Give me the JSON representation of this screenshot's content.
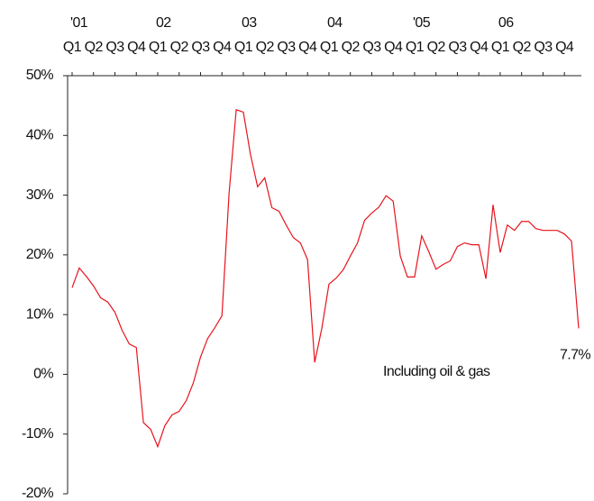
{
  "chart_data": {
    "type": "line",
    "categories": [
      "Q1",
      null,
      null,
      "Q2",
      null,
      null,
      "Q3",
      null,
      null,
      "Q4",
      null,
      null,
      "Q1",
      null,
      null,
      "Q2",
      null,
      null,
      "Q3",
      null,
      null,
      "Q4",
      null,
      null,
      "Q1",
      null,
      null,
      "Q2",
      null,
      null,
      "Q3",
      null,
      null,
      "Q4",
      null,
      null,
      "Q1",
      null,
      null,
      "Q2",
      null,
      null,
      "Q3",
      null,
      null,
      "Q4",
      null,
      null,
      "Q1",
      null,
      null,
      "Q2",
      null,
      null,
      "Q3",
      null,
      null,
      "Q4",
      null,
      null,
      "Q1",
      null,
      null,
      "Q2",
      null,
      null,
      "Q3",
      null,
      null,
      "Q4",
      null,
      null
    ],
    "years": [
      "'01",
      null,
      null,
      null,
      null,
      null,
      null,
      null,
      null,
      null,
      null,
      null,
      "02",
      null,
      null,
      null,
      null,
      null,
      null,
      null,
      null,
      null,
      null,
      null,
      "03",
      null,
      null,
      null,
      null,
      null,
      null,
      null,
      null,
      null,
      null,
      null,
      "04",
      null,
      null,
      null,
      null,
      null,
      null,
      null,
      null,
      null,
      null,
      null,
      "'05",
      null,
      null,
      null,
      null,
      null,
      null,
      null,
      null,
      null,
      null,
      null,
      "06",
      null,
      null,
      null,
      null,
      null,
      null,
      null,
      null,
      null,
      null,
      null
    ],
    "series": [
      {
        "name": "Including oil & gas",
        "color": "#e8141e",
        "values": [
          14.5,
          17.8,
          16.4,
          14.8,
          12.8,
          12.1,
          10.4,
          7.4,
          5.1,
          4.5,
          -8.1,
          -9.2,
          -12.1,
          -8.6,
          -6.8,
          -6.2,
          -4.4,
          -1.4,
          2.9,
          6.0,
          7.8,
          9.8,
          30.3,
          44.3,
          43.9,
          36.8,
          31.4,
          32.9,
          27.9,
          27.3,
          25,
          22.9,
          22,
          19.2,
          2,
          7.7,
          15.1,
          16.1,
          17.5,
          19.8,
          22,
          25.8,
          27,
          28,
          29.9,
          29,
          19.8,
          16.3,
          16.3,
          23.2,
          20.5,
          17.6,
          18.4,
          19,
          21.4,
          22,
          21.7,
          21.7,
          16,
          28.4,
          20.4,
          25,
          24.1,
          25.6,
          25.6,
          24.4,
          24.1,
          24.1,
          24.1,
          23.5,
          22.3,
          7.7
        ],
        "value_labels": [
          null,
          null,
          null,
          null,
          null,
          null,
          null,
          null,
          null,
          null,
          null,
          null,
          null,
          null,
          null,
          null,
          null,
          null,
          null,
          null,
          null,
          null,
          null,
          null,
          null,
          null,
          null,
          null,
          null,
          null,
          null,
          null,
          null,
          null,
          null,
          null,
          null,
          null,
          null,
          null,
          null,
          null,
          null,
          null,
          null,
          null,
          null,
          null,
          null,
          null,
          null,
          null,
          null,
          null,
          null,
          null,
          null,
          null,
          null,
          null,
          null,
          null,
          null,
          null,
          null,
          null,
          null,
          null,
          null,
          null,
          null,
          "7.7%"
        ]
      }
    ],
    "ylim": [
      -20,
      50
    ],
    "yticks": [
      {
        "value": -20,
        "label": "-20%"
      },
      {
        "value": -10,
        "label": "-10%"
      },
      {
        "value": 0,
        "label": "0%"
      },
      {
        "value": 10,
        "label": "10%"
      },
      {
        "value": 20,
        "label": "20%"
      },
      {
        "value": 30,
        "label": "30%"
      },
      {
        "value": 40,
        "label": "40%"
      },
      {
        "value": 50,
        "label": "50%"
      }
    ],
    "grid": false,
    "annotation": "Including oil & gas"
  }
}
